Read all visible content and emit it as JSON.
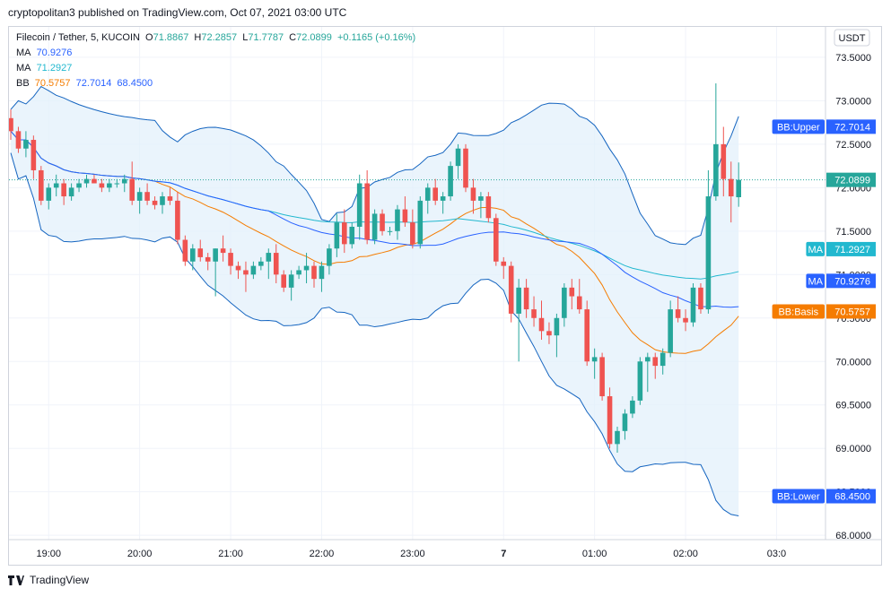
{
  "header": {
    "published": "cryptopolitan3 published on TradingView.com, Oct 07, 2021 03:00 UTC"
  },
  "legend": {
    "symbol": "Filecoin / Tether, 5, KUCOIN",
    "o_label": "O",
    "o_val": "71.8867",
    "h_label": "H",
    "h_val": "72.2857",
    "l_label": "L",
    "l_val": "71.7787",
    "c_label": "C",
    "c_val": "72.0899",
    "change": "+0.1165 (+0.16%)",
    "ma1_label": "MA",
    "ma1_val": "70.9276",
    "ma2_label": "MA",
    "ma2_val": "71.2927",
    "bb_label": "BB",
    "bb_basis": "70.5757",
    "bb_upper": "72.7014",
    "bb_lower": "68.4500"
  },
  "footer": {
    "brand": "TradingView"
  },
  "colors": {
    "up": "#26a69a",
    "down": "#ef5350",
    "ma_fast": "#2962ff",
    "ma_slow": "#22b8cf",
    "bb_basis": "#f57c00",
    "bb_band": "#1565c0",
    "bb_fill": "#e3f0fb"
  },
  "chart_data": {
    "type": "candlestick",
    "currency_label": "USDT",
    "y_ticks": [
      "73.5000",
      "73.0000",
      "72.5000",
      "72.0000",
      "71.5000",
      "71.0000",
      "70.5000",
      "70.0000",
      "69.5000",
      "69.0000",
      "68.5000",
      "68.0000"
    ],
    "y_tick_values": [
      73.5,
      73.0,
      72.5,
      72.0,
      71.5,
      71.0,
      70.5,
      70.0,
      69.5,
      69.0,
      68.5,
      68.0
    ],
    "ylim": [
      67.95,
      73.85
    ],
    "x_ticks": [
      {
        "label": "19:00",
        "t": 5
      },
      {
        "label": "20:00",
        "t": 17
      },
      {
        "label": "21:00",
        "t": 29
      },
      {
        "label": "22:00",
        "t": 41
      },
      {
        "label": "23:00",
        "t": 53
      },
      {
        "label": "7",
        "t": 65
      },
      {
        "label": "01:00",
        "t": 77
      },
      {
        "label": "02:00",
        "t": 89
      },
      {
        "label": "03:0",
        "t": 101
      }
    ],
    "price_labels": [
      {
        "text": "BB:Upper",
        "value": "72.7014",
        "y": 72.7014,
        "color": "#2962ff"
      },
      {
        "text": "",
        "value": "72.0899",
        "y": 72.0899,
        "color": "#26a69a"
      },
      {
        "text": "MA",
        "value": "71.2927",
        "y": 71.2927,
        "color": "#22b8cf"
      },
      {
        "text": "MA",
        "value": "70.9276",
        "y": 70.9276,
        "color": "#2962ff"
      },
      {
        "text": "BB:Basis",
        "value": "70.5757",
        "y": 70.5757,
        "color": "#f57c00"
      },
      {
        "text": "BB:Lower",
        "value": "68.4500",
        "y": 68.45,
        "color": "#2962ff"
      }
    ],
    "last_price": 72.0899,
    "candles": [
      [
        72.8,
        72.9,
        72.55,
        72.65
      ],
      [
        72.65,
        72.7,
        72.4,
        72.45
      ],
      [
        72.45,
        72.65,
        72.35,
        72.55
      ],
      [
        72.55,
        72.6,
        72.1,
        72.2
      ],
      [
        72.2,
        72.25,
        71.8,
        71.85
      ],
      [
        71.85,
        72.05,
        71.75,
        72.0
      ],
      [
        72.0,
        72.15,
        71.9,
        72.05
      ],
      [
        72.05,
        72.1,
        71.8,
        71.9
      ],
      [
        71.9,
        72.05,
        71.85,
        72.0
      ],
      [
        72.0,
        72.1,
        71.95,
        72.05
      ],
      [
        72.05,
        72.15,
        72.0,
        72.1
      ],
      [
        72.1,
        72.15,
        72.05,
        72.05
      ],
      [
        72.05,
        72.1,
        71.95,
        72.0
      ],
      [
        72.0,
        72.1,
        71.95,
        72.05
      ],
      [
        72.05,
        72.1,
        72.0,
        72.05
      ],
      [
        72.05,
        72.15,
        71.95,
        72.1
      ],
      [
        72.1,
        72.3,
        71.8,
        71.85
      ],
      [
        71.85,
        72.0,
        71.7,
        71.95
      ],
      [
        71.95,
        72.05,
        71.8,
        71.85
      ],
      [
        71.85,
        71.9,
        71.75,
        71.8
      ],
      [
        71.8,
        71.95,
        71.7,
        71.9
      ],
      [
        71.9,
        72.0,
        71.8,
        71.85
      ],
      [
        71.85,
        71.95,
        71.35,
        71.4
      ],
      [
        71.4,
        71.45,
        71.1,
        71.15
      ],
      [
        71.15,
        71.35,
        71.05,
        71.3
      ],
      [
        71.3,
        71.4,
        71.15,
        71.2
      ],
      [
        71.2,
        71.25,
        71.05,
        71.15
      ],
      [
        71.15,
        71.3,
        70.75,
        71.3
      ],
      [
        71.3,
        71.45,
        71.15,
        71.25
      ],
      [
        71.25,
        71.3,
        71.0,
        71.1
      ],
      [
        71.1,
        71.15,
        70.95,
        71.05
      ],
      [
        71.05,
        71.15,
        70.8,
        71.0
      ],
      [
        71.0,
        71.15,
        70.95,
        71.1
      ],
      [
        71.1,
        71.2,
        71.05,
        71.15
      ],
      [
        71.15,
        71.3,
        70.95,
        71.25
      ],
      [
        71.25,
        71.35,
        70.9,
        71.0
      ],
      [
        71.0,
        71.05,
        70.8,
        70.85
      ],
      [
        70.85,
        71.05,
        70.7,
        71.0
      ],
      [
        71.0,
        71.1,
        70.95,
        71.05
      ],
      [
        71.05,
        71.25,
        70.9,
        71.1
      ],
      [
        71.1,
        71.15,
        70.85,
        70.95
      ],
      [
        70.95,
        71.15,
        70.8,
        71.1
      ],
      [
        71.1,
        71.35,
        71.0,
        71.3
      ],
      [
        71.3,
        71.7,
        71.2,
        71.6
      ],
      [
        71.6,
        71.75,
        71.25,
        71.35
      ],
      [
        71.35,
        71.6,
        71.3,
        71.55
      ],
      [
        71.55,
        72.15,
        71.4,
        72.05
      ],
      [
        72.05,
        72.2,
        71.35,
        71.4
      ],
      [
        71.4,
        71.75,
        71.35,
        71.7
      ],
      [
        71.7,
        71.75,
        71.45,
        71.5
      ],
      [
        71.5,
        71.55,
        71.45,
        71.5
      ],
      [
        71.5,
        71.8,
        71.4,
        71.75
      ],
      [
        71.75,
        71.9,
        71.55,
        71.6
      ],
      [
        71.6,
        71.75,
        71.3,
        71.35
      ],
      [
        71.35,
        71.9,
        71.3,
        71.85
      ],
      [
        71.85,
        72.05,
        71.7,
        72.0
      ],
      [
        72.0,
        72.1,
        71.8,
        71.85
      ],
      [
        71.85,
        71.95,
        71.7,
        71.9
      ],
      [
        71.9,
        72.3,
        71.85,
        72.25
      ],
      [
        72.25,
        72.5,
        72.1,
        72.45
      ],
      [
        72.45,
        72.5,
        71.95,
        72.0
      ],
      [
        72.0,
        72.1,
        71.7,
        71.85
      ],
      [
        71.85,
        71.95,
        71.65,
        71.9
      ],
      [
        71.9,
        71.95,
        71.6,
        71.65
      ],
      [
        71.65,
        71.7,
        71.1,
        71.15
      ],
      [
        71.15,
        71.2,
        70.95,
        71.1
      ],
      [
        71.1,
        71.15,
        70.45,
        70.55
      ],
      [
        70.55,
        70.95,
        70.0,
        70.85
      ],
      [
        70.85,
        70.95,
        70.5,
        70.6
      ],
      [
        70.6,
        70.75,
        70.4,
        70.5
      ],
      [
        70.5,
        70.7,
        70.25,
        70.35
      ],
      [
        70.35,
        70.45,
        70.2,
        70.3
      ],
      [
        70.3,
        70.55,
        70.05,
        70.5
      ],
      [
        70.5,
        70.9,
        70.4,
        70.85
      ],
      [
        70.85,
        70.95,
        70.6,
        70.75
      ],
      [
        70.75,
        70.95,
        70.55,
        70.6
      ],
      [
        70.6,
        70.7,
        69.95,
        70.0
      ],
      [
        70.0,
        70.15,
        69.8,
        70.05
      ],
      [
        70.05,
        70.1,
        69.55,
        69.6
      ],
      [
        69.6,
        69.7,
        69.0,
        69.05
      ],
      [
        69.05,
        69.25,
        68.95,
        69.2
      ],
      [
        69.2,
        69.45,
        69.1,
        69.4
      ],
      [
        69.4,
        69.6,
        69.35,
        69.55
      ],
      [
        69.55,
        70.05,
        69.5,
        70.0
      ],
      [
        70.0,
        70.1,
        69.65,
        70.05
      ],
      [
        70.05,
        70.1,
        69.8,
        69.95
      ],
      [
        69.95,
        70.15,
        69.85,
        70.1
      ],
      [
        70.1,
        70.7,
        70.05,
        70.6
      ],
      [
        70.6,
        70.75,
        70.45,
        70.5
      ],
      [
        70.5,
        70.6,
        70.35,
        70.45
      ],
      [
        70.45,
        70.9,
        70.4,
        70.85
      ],
      [
        70.85,
        70.9,
        70.55,
        70.6
      ],
      [
        70.6,
        72.2,
        70.55,
        71.9
      ],
      [
        71.9,
        73.2,
        71.85,
        72.5
      ],
      [
        72.5,
        72.7,
        71.9,
        72.1
      ],
      [
        72.1,
        72.3,
        71.6,
        71.9
      ],
      [
        71.89,
        72.29,
        71.78,
        72.09
      ]
    ]
  }
}
